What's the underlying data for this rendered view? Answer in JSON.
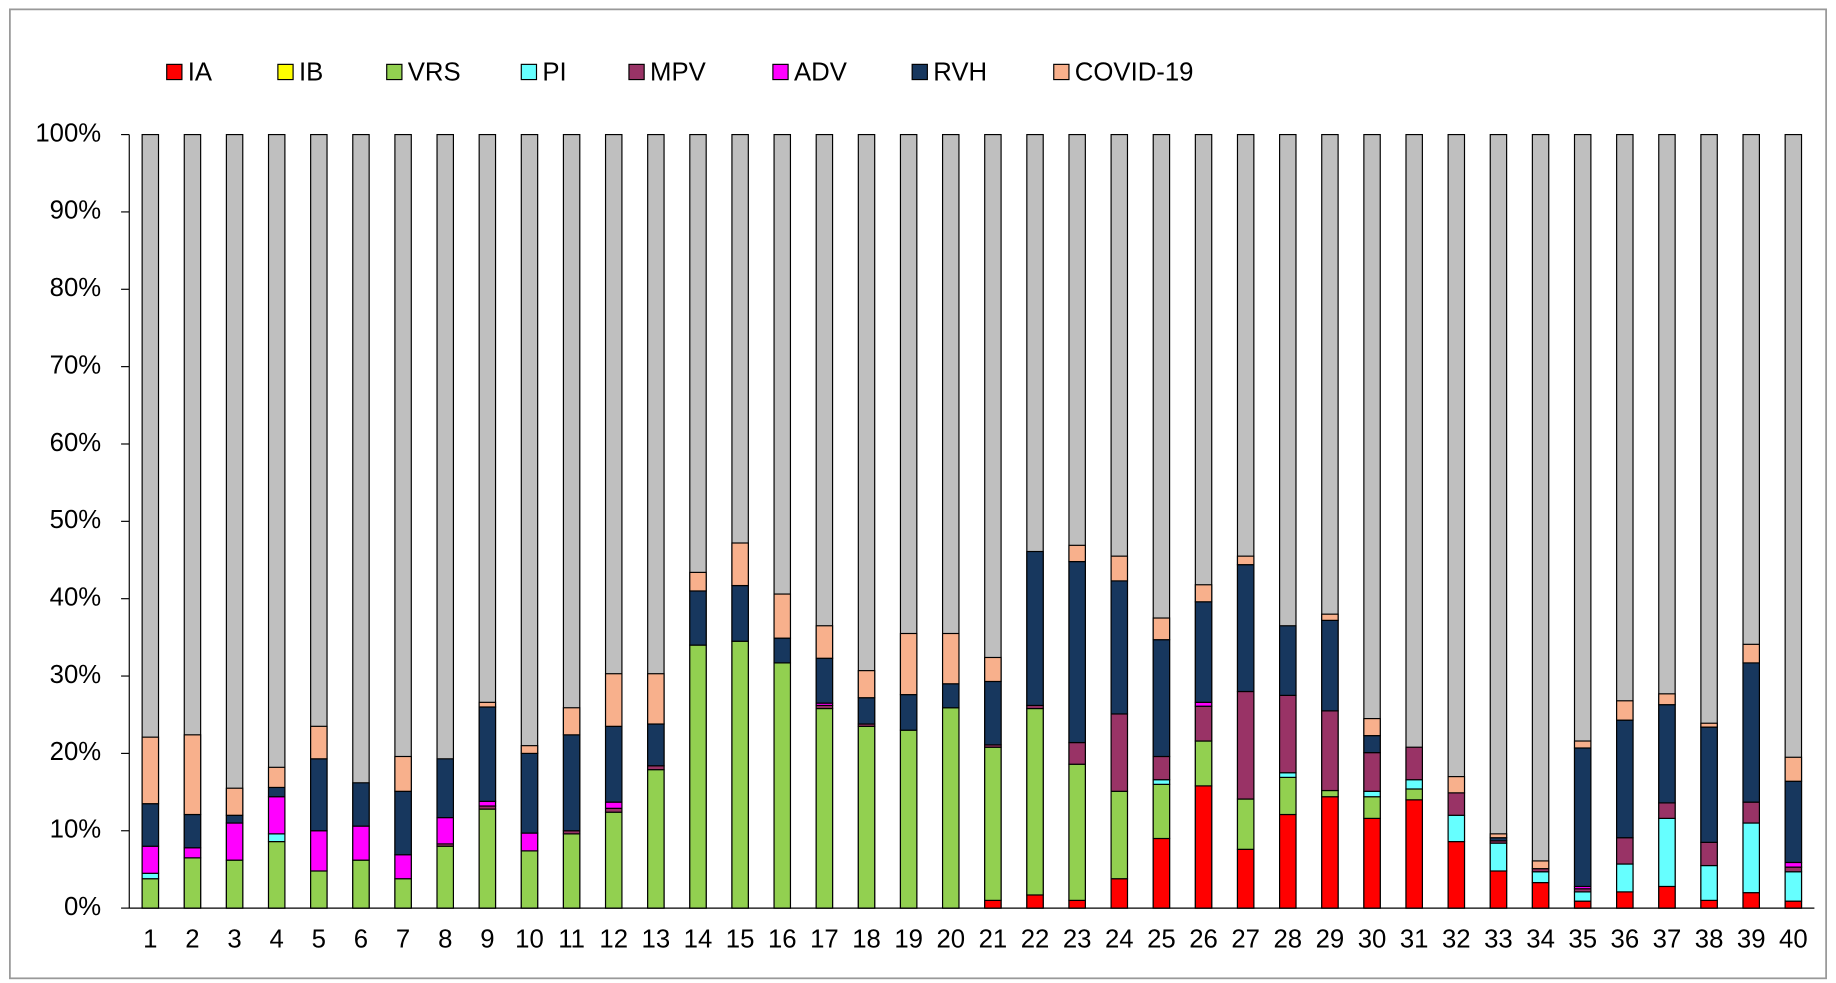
{
  "chart_data": {
    "type": "stacked_bar_100",
    "categories": [
      "1",
      "2",
      "3",
      "4",
      "5",
      "6",
      "7",
      "8",
      "9",
      "10",
      "11",
      "12",
      "13",
      "14",
      "15",
      "16",
      "17",
      "18",
      "19",
      "20",
      "21",
      "22",
      "23",
      "24",
      "25",
      "26",
      "27",
      "28",
      "29",
      "30",
      "31",
      "32",
      "33",
      "34",
      "35",
      "36",
      "37",
      "38",
      "39",
      "40"
    ],
    "series": [
      {
        "name": "IA",
        "color": "#ff0000",
        "values": [
          0,
          0,
          0,
          0,
          0,
          0,
          0,
          0,
          0,
          0,
          0,
          0,
          0,
          0,
          0,
          0,
          0,
          0,
          0,
          0,
          1.0,
          1.7,
          1.0,
          3.8,
          9.0,
          15.8,
          7.6,
          12.1,
          14.4,
          11.6,
          14.0,
          8.6,
          4.8,
          3.3,
          0.9,
          2.1,
          2.8,
          1.0,
          2.0,
          0.9
        ]
      },
      {
        "name": "IB",
        "color": "#ffff00",
        "values": [
          0,
          0,
          0,
          0,
          0,
          0,
          0,
          0,
          0,
          0,
          0,
          0,
          0,
          0,
          0,
          0,
          0,
          0,
          0,
          0,
          0,
          0,
          0,
          0,
          0,
          0,
          0,
          0,
          0,
          0,
          0,
          0,
          0,
          0,
          0,
          0,
          0,
          0,
          0,
          0
        ]
      },
      {
        "name": "VRS",
        "color": "#92d050",
        "values": [
          3.8,
          6.5,
          6.2,
          8.6,
          4.8,
          6.2,
          3.8,
          8.0,
          12.8,
          7.4,
          9.6,
          12.4,
          17.9,
          34.0,
          34.5,
          31.7,
          25.8,
          23.5,
          23.0,
          25.9,
          19.8,
          24.1,
          17.6,
          11.3,
          7.0,
          5.8,
          6.5,
          4.8,
          0.8,
          2.8,
          1.4,
          0,
          0,
          0,
          0,
          0,
          0,
          0,
          0,
          0
        ]
      },
      {
        "name": "PI",
        "color": "#66ffff",
        "values": [
          0.7,
          0,
          0,
          1.0,
          0,
          0,
          0,
          0,
          0,
          0,
          0,
          0,
          0,
          0,
          0,
          0,
          0,
          0,
          0,
          0,
          0,
          0,
          0,
          0,
          0.6,
          0,
          0,
          0.6,
          0,
          0.7,
          1.2,
          3.4,
          3.6,
          1.4,
          1.2,
          3.6,
          8.8,
          4.5,
          9.0,
          3.8
        ]
      },
      {
        "name": "MPV",
        "color": "#993366",
        "values": [
          0,
          0,
          0,
          0,
          0,
          0,
          0,
          0.3,
          0.4,
          0,
          0.4,
          0.5,
          0.5,
          0,
          0,
          0,
          0.4,
          0.3,
          0,
          0,
          0.3,
          0.4,
          2.8,
          10.0,
          3.0,
          4.5,
          13.9,
          10.0,
          10.3,
          5.0,
          4.2,
          2.9,
          0.3,
          0.4,
          0.4,
          3.4,
          2.0,
          3.0,
          2.7,
          0.6
        ]
      },
      {
        "name": "ADV",
        "color": "#ff00ff",
        "values": [
          3.5,
          1.3,
          4.8,
          4.8,
          5.2,
          4.4,
          3.1,
          3.4,
          0.6,
          2.3,
          0,
          0.8,
          0,
          0,
          0,
          0,
          0.3,
          0,
          0,
          0,
          0,
          0,
          0,
          0,
          0,
          0.5,
          0,
          0,
          0,
          0,
          0,
          0,
          0,
          0,
          0.3,
          0,
          0,
          0,
          0,
          0.6
        ]
      },
      {
        "name": "RVH",
        "color": "#17375e",
        "values": [
          5.5,
          4.3,
          1.0,
          1.2,
          9.3,
          5.6,
          8.2,
          7.6,
          12.2,
          10.3,
          12.4,
          9.8,
          5.4,
          7.0,
          7.2,
          3.2,
          5.8,
          3.4,
          4.6,
          3.1,
          8.2,
          19.9,
          23.4,
          17.2,
          15.1,
          13.0,
          16.4,
          9.0,
          11.7,
          2.2,
          0,
          0,
          0.4,
          0,
          17.9,
          15.2,
          12.7,
          14.9,
          18.0,
          10.5
        ]
      },
      {
        "name": "COVID-19",
        "color": "#f8b08c",
        "values": [
          8.6,
          10.3,
          3.5,
          2.6,
          4.2,
          0,
          4.5,
          0,
          0.6,
          1.0,
          3.5,
          6.8,
          6.5,
          2.4,
          5.5,
          5.7,
          4.2,
          3.5,
          7.9,
          6.5,
          3.1,
          0,
          2.1,
          3.2,
          2.8,
          2.2,
          1.1,
          0,
          0.8,
          2.2,
          0,
          2.1,
          0.5,
          1.0,
          0.9,
          2.5,
          1.4,
          0.5,
          2.4,
          3.1
        ]
      }
    ],
    "ylim": [
      0,
      100
    ],
    "yticks": [
      {
        "value": 0,
        "label": "0%"
      },
      {
        "value": 10,
        "label": "10%"
      },
      {
        "value": 20,
        "label": "20%"
      },
      {
        "value": 30,
        "label": "30%"
      },
      {
        "value": 40,
        "label": "40%"
      },
      {
        "value": 50,
        "label": "50%"
      },
      {
        "value": 60,
        "label": "60%"
      },
      {
        "value": 70,
        "label": "70%"
      },
      {
        "value": 80,
        "label": "80%"
      },
      {
        "value": 90,
        "label": "90%"
      },
      {
        "value": 100,
        "label": "100%"
      }
    ],
    "legend": "top"
  }
}
